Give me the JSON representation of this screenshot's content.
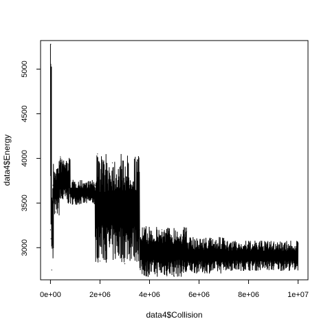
{
  "chart_data": {
    "type": "line",
    "title": "",
    "xlabel": "data4$Collision",
    "ylabel": "data4$Energy",
    "xlim": [
      -400000,
      10400000
    ],
    "ylim": [
      2640,
      5320
    ],
    "x_ticks": [
      0,
      2000000,
      4000000,
      6000000,
      8000000,
      10000000
    ],
    "x_tick_labels": [
      "0e+00",
      "2e+06",
      "4e+06",
      "6e+06",
      "8e+06",
      "1e+07"
    ],
    "y_ticks": [
      3000,
      3500,
      4000,
      4500,
      5000
    ],
    "y_tick_labels": [
      "3000",
      "3500",
      "4000",
      "4500",
      "5000"
    ],
    "grid": false,
    "legend": "none",
    "line_color": "#000000",
    "series": [
      {
        "segments": [
          {
            "x_range": [
              0,
              40000
            ],
            "low": 3100,
            "high": 5280
          },
          {
            "x_range": [
              40000,
              120000
            ],
            "low": 2750,
            "high": 3750
          },
          {
            "x_range": [
              120000,
              350000
            ],
            "low": 3350,
            "high": 3950
          },
          {
            "x_range": [
              350000,
              800000
            ],
            "low": 3480,
            "high": 4020
          },
          {
            "x_range": [
              800000,
              1800000
            ],
            "low": 3480,
            "high": 3760
          },
          {
            "x_range": [
              1800000,
              3600000
            ],
            "low": 2830,
            "high": 4050
          },
          {
            "x_range": [
              3600000,
              5500000
            ],
            "low": 2670,
            "high": 3240
          },
          {
            "x_range": [
              5500000,
              7000000
            ],
            "low": 2710,
            "high": 3120
          },
          {
            "x_range": [
              7000000,
              10000000
            ],
            "low": 2740,
            "high": 3080
          }
        ],
        "values_sampled": [
          [
            0,
            3200
          ],
          [
            10000,
            5280
          ],
          [
            20000,
            3100
          ],
          [
            30000,
            4700
          ],
          [
            50000,
            2750
          ],
          [
            100000,
            3700
          ],
          [
            200000,
            3400
          ],
          [
            400000,
            4020
          ],
          [
            600000,
            3920
          ],
          [
            800000,
            3750
          ],
          [
            1000000,
            3600
          ],
          [
            1500000,
            3650
          ],
          [
            1800000,
            3700
          ],
          [
            1900000,
            4050
          ],
          [
            2000000,
            2850
          ],
          [
            2500000,
            3950
          ],
          [
            3000000,
            2820
          ],
          [
            3500000,
            3980
          ],
          [
            3600000,
            3200
          ],
          [
            4000000,
            2700
          ],
          [
            4500000,
            3200
          ],
          [
            5000000,
            2680
          ],
          [
            5500000,
            3180
          ],
          [
            6000000,
            2750
          ],
          [
            6500000,
            3100
          ],
          [
            7000000,
            2760
          ],
          [
            8000000,
            3060
          ],
          [
            9000000,
            2780
          ],
          [
            10000000,
            3040
          ]
        ]
      }
    ]
  }
}
